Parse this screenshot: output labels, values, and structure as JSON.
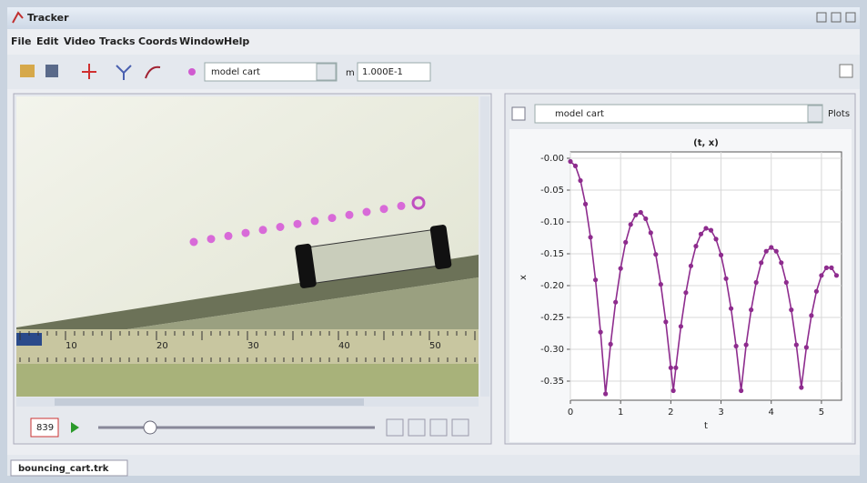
{
  "window": {
    "title": "Tracker"
  },
  "menu": [
    "File",
    "Edit",
    "Video",
    "Tracks",
    "Coords",
    "Window",
    "Help"
  ],
  "toolbar": {
    "track": "model cart",
    "mass_label": "m",
    "mass": "1.000E-1"
  },
  "video": {
    "ruler_labels": [
      "10",
      "20",
      "30",
      "40",
      "50"
    ]
  },
  "player": {
    "frame": "839"
  },
  "plot_view": {
    "track": "model cart",
    "button": "Plots"
  },
  "chart_data": {
    "type": "line",
    "title": "(t, x)",
    "x_label": "t",
    "y_label": "x",
    "x": [
      0,
      0.1,
      0.2,
      0.3,
      0.4,
      0.5,
      0.6,
      0.7,
      0.8,
      0.9,
      1.0,
      1.1,
      1.2,
      1.3,
      1.4,
      1.5,
      1.6,
      1.7,
      1.8,
      1.9,
      2.0,
      2.05,
      2.1,
      2.2,
      2.3,
      2.4,
      2.5,
      2.6,
      2.7,
      2.8,
      2.9,
      3.0,
      3.1,
      3.2,
      3.3,
      3.4,
      3.5,
      3.6,
      3.7,
      3.8,
      3.9,
      4.0,
      4.1,
      4.2,
      4.3,
      4.4,
      4.5,
      4.6,
      4.7,
      4.8,
      4.9,
      5.0,
      5.1,
      5.2,
      5.3
    ],
    "series": [
      {
        "color": "#8e2c8e",
        "values": [
          -0.005,
          -0.012,
          -0.035,
          -0.072,
          -0.124,
          -0.191,
          -0.273,
          -0.37,
          -0.292,
          -0.226,
          -0.173,
          -0.132,
          -0.104,
          -0.089,
          -0.085,
          -0.095,
          -0.117,
          -0.151,
          -0.198,
          -0.257,
          -0.329,
          -0.365,
          -0.329,
          -0.264,
          -0.211,
          -0.169,
          -0.138,
          -0.119,
          -0.11,
          -0.113,
          -0.127,
          -0.152,
          -0.189,
          -0.236,
          -0.295,
          -0.365,
          -0.293,
          -0.238,
          -0.195,
          -0.164,
          -0.146,
          -0.14,
          -0.146,
          -0.164,
          -0.195,
          -0.238,
          -0.293,
          -0.36,
          -0.297,
          -0.247,
          -0.209,
          -0.184,
          -0.172,
          -0.172,
          -0.184
        ]
      }
    ],
    "xlim": [
      0,
      5.4
    ],
    "ylim": [
      -0.38,
      0.01
    ],
    "xticks": [
      0,
      1,
      2,
      3,
      4,
      5
    ],
    "yticks": [
      {
        "value": 0,
        "label": "-0.00"
      },
      -0.05,
      {
        "value": -0.1,
        "label": "-0.10"
      },
      -0.15,
      {
        "value": -0.2,
        "label": "-0.20"
      },
      -0.25,
      {
        "value": -0.3,
        "label": "-0.30"
      },
      -0.35
    ],
    "grid": true,
    "markers": true
  },
  "tab": "bouncing_cart.trk"
}
